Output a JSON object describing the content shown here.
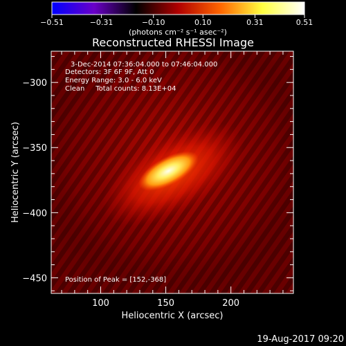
{
  "chart_data": {
    "type": "heatmap",
    "title": "Reconstructed RHESSI Image",
    "xlabel": "Heliocentric X (arcsec)",
    "ylabel": "Heliocentric Y (arcsec)",
    "xlim": [
      62,
      248
    ],
    "ylim": [
      -462,
      -276
    ],
    "x_ticks": [
      100,
      150,
      200
    ],
    "y_ticks": [
      -300,
      -350,
      -400,
      -450
    ],
    "colorbar": {
      "label": "(photons cm⁻² s⁻¹ asec⁻²)",
      "range": [
        -0.51,
        0.51
      ],
      "tick_values": [
        -0.51,
        -0.31,
        -0.1,
        0.1,
        0.31,
        0.51
      ],
      "tick_labels": [
        "−0.51",
        "−0.31",
        "−0.10",
        "0.10",
        "0.31",
        "0.51"
      ],
      "colors": [
        "#0000ff",
        "#6a00c8",
        "#000000",
        "#b00000",
        "#ff6600",
        "#ffff40",
        "#ffffff"
      ]
    },
    "annotations": [
      "3-Dec-2014 07:36:04.000 to 07:46:04.000",
      "Detectors: 3F 6F 9F, Att 0",
      "Energy Range: 3.0 - 6.0 keV",
      "Clean     Total counts: 8.13E+04",
      "Position of Peak = [152,-368]"
    ],
    "peak": {
      "x": 152,
      "y": -368,
      "value": 0.51
    },
    "grid": false,
    "footer": "19-Aug-2017 09:20"
  }
}
